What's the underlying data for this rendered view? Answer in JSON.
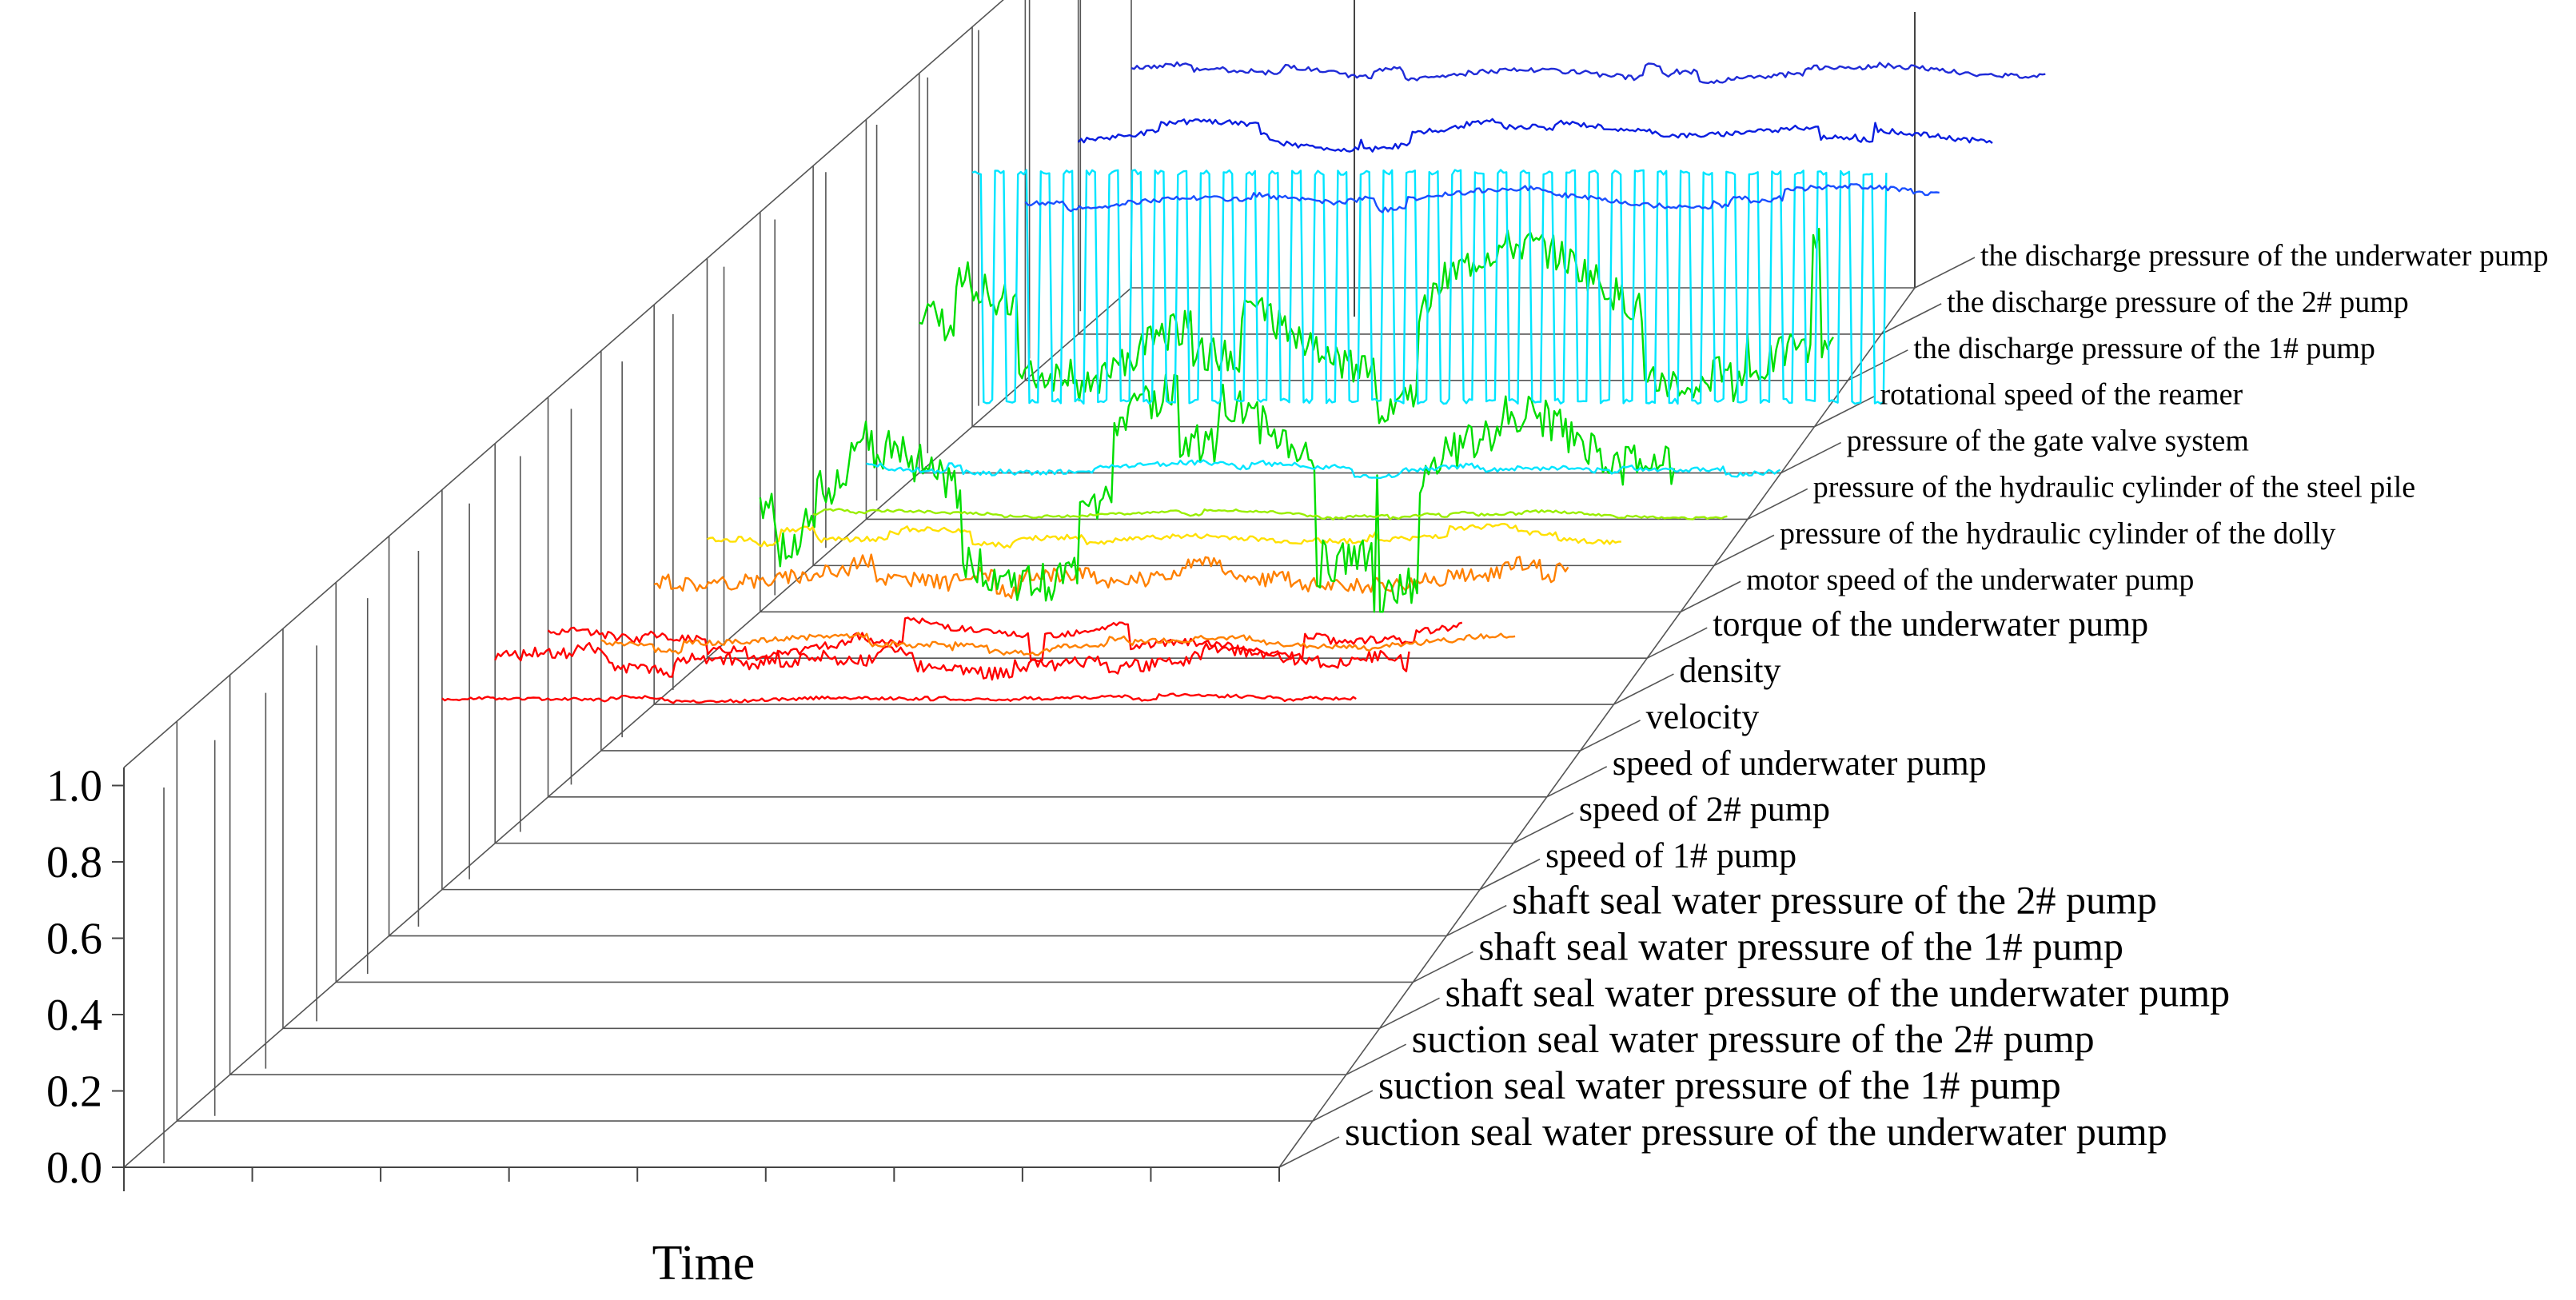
{
  "chart_data": {
    "type": "line",
    "subtype": "3d-waterfall",
    "title": "",
    "xlabel": "Time",
    "ylabel": "",
    "zlabel": "",
    "ylim": [
      0.0,
      1.0
    ],
    "y_ticks": [
      "0.0",
      "0.2",
      "0.4",
      "0.6",
      "0.8",
      "1.0"
    ],
    "x_tick_count": 9,
    "grid": true,
    "series": [
      {
        "name": "suction seal water pressure of the underwater pump",
        "color": "#ff0000",
        "plotted": false
      },
      {
        "name": "suction seal water pressure of the 1# pump",
        "color": "#ff0000",
        "plotted": false
      },
      {
        "name": "suction seal water pressure of the 2# pump",
        "color": "#ff0000",
        "plotted": false
      },
      {
        "name": "shaft seal water pressure of the underwater pump",
        "color": "#ff0000",
        "plotted": false
      },
      {
        "name": "shaft seal water pressure of the 1# pump",
        "color": "#ff0000",
        "plotted": false
      },
      {
        "name": "shaft seal water pressure of the 2# pump",
        "color": "#ff0000",
        "plotted": false
      },
      {
        "name": "speed of 1# pump",
        "color": "#ff0000",
        "plotted": true,
        "base": 0.75,
        "amp": 0.012,
        "noise": 0.006,
        "steps": 0.01
      },
      {
        "name": "speed of 2# pump",
        "color": "#ff0000",
        "plotted": true,
        "base": 0.72,
        "amp": 0.05,
        "noise": 0.025,
        "steps": 0.04
      },
      {
        "name": "speed of underwater pump",
        "color": "#ff0000",
        "plotted": true,
        "base": 0.62,
        "amp": 0.07,
        "noise": 0.015,
        "steps": 0.06
      },
      {
        "name": "velocity",
        "color": "#ff8000",
        "plotted": true,
        "base": 0.42,
        "amp": 0.03,
        "noise": 0.01,
        "steps": 0.02
      },
      {
        "name": "density",
        "color": "#ff8000",
        "plotted": true,
        "base": 0.5,
        "amp": 0.05,
        "noise": 0.03,
        "steps": 0.04
      },
      {
        "name": "torque of the underwater pump",
        "color": "#ffe000",
        "plotted": true,
        "base": 0.48,
        "amp": 0.03,
        "noise": 0.01,
        "steps": 0.03
      },
      {
        "name": "motor speed of the underwater pump",
        "color": "#00dd00",
        "plotted": true,
        "base": 0.45,
        "amp": 0.3,
        "noise": 0.08,
        "steps": 0.3
      },
      {
        "name": "pressure of the hydraulic cylinder of the dolly",
        "color": "#99ee00",
        "plotted": true,
        "base": 0.2,
        "amp": 0.02,
        "noise": 0.005,
        "steps": 0.01
      },
      {
        "name": "pressure of the hydraulic cylinder of the steel pile",
        "color": "#00e5ff",
        "plotted": true,
        "base": 0.2,
        "amp": 0.03,
        "noise": 0.01,
        "steps": 0.02
      },
      {
        "name": "pressure of the gate valve system",
        "color": "#00dd00",
        "plotted": true,
        "base": 0.55,
        "amp": 0.3,
        "noise": 0.07,
        "steps": 0.3
      },
      {
        "name": "rotational speed of the reamer",
        "color": "#00e5ff",
        "plotted": true,
        "base": 0.55,
        "amp": 0.45,
        "noise": 0.02,
        "steps": 0.0,
        "square": true
      },
      {
        "name": "the discharge pressure of the 1# pump",
        "color": "#1a4fff",
        "plotted": true,
        "base": 0.72,
        "amp": 0.05,
        "noise": 0.01,
        "steps": 0.03
      },
      {
        "name": "the discharge pressure of the 2# pump",
        "color": "#0a1ee0",
        "plotted": true,
        "base": 0.78,
        "amp": 0.05,
        "noise": 0.01,
        "steps": 0.04
      },
      {
        "name": "the discharge pressure of the underwater pump",
        "color": "#1f2bd8",
        "plotted": true,
        "base": 0.86,
        "amp": 0.04,
        "noise": 0.01,
        "steps": 0.03
      }
    ]
  }
}
